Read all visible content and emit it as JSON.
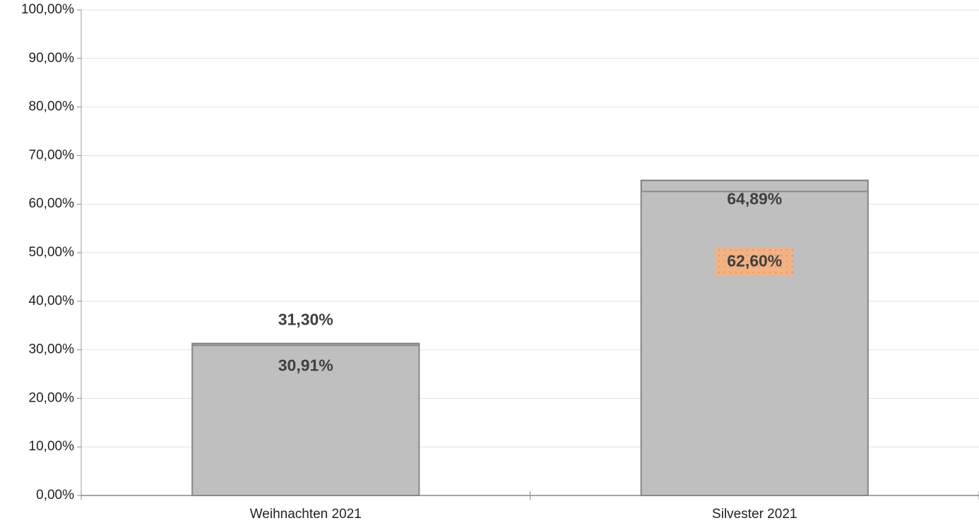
{
  "chart_data": {
    "type": "bar",
    "overlap": true,
    "categories": [
      "Weihnachten 2021",
      "Silvester 2021"
    ],
    "series": [
      {
        "color": "#bfbfbf",
        "values": [
          31.3,
          64.89
        ],
        "value_labels": [
          "31,30%",
          "64,89%"
        ]
      },
      {
        "color": "#bfbfbf",
        "values": [
          30.91,
          62.6
        ],
        "value_labels": [
          "30,91%",
          "62,60%"
        ]
      }
    ],
    "ylim": [
      0,
      100
    ],
    "yticks": [
      {
        "value": 0,
        "label": "0,00%"
      },
      {
        "value": 10,
        "label": "10,00%"
      },
      {
        "value": 20,
        "label": "20,00%"
      },
      {
        "value": 30,
        "label": "30,00%"
      },
      {
        "value": 40,
        "label": "40,00%"
      },
      {
        "value": 50,
        "label": "50,00%"
      },
      {
        "value": 60,
        "label": "60,00%"
      },
      {
        "value": 70,
        "label": "70,00%"
      },
      {
        "value": 80,
        "label": "80,00%"
      },
      {
        "value": 90,
        "label": "90,00%"
      },
      {
        "value": 100,
        "label": "100,00%"
      }
    ],
    "grid": true
  }
}
